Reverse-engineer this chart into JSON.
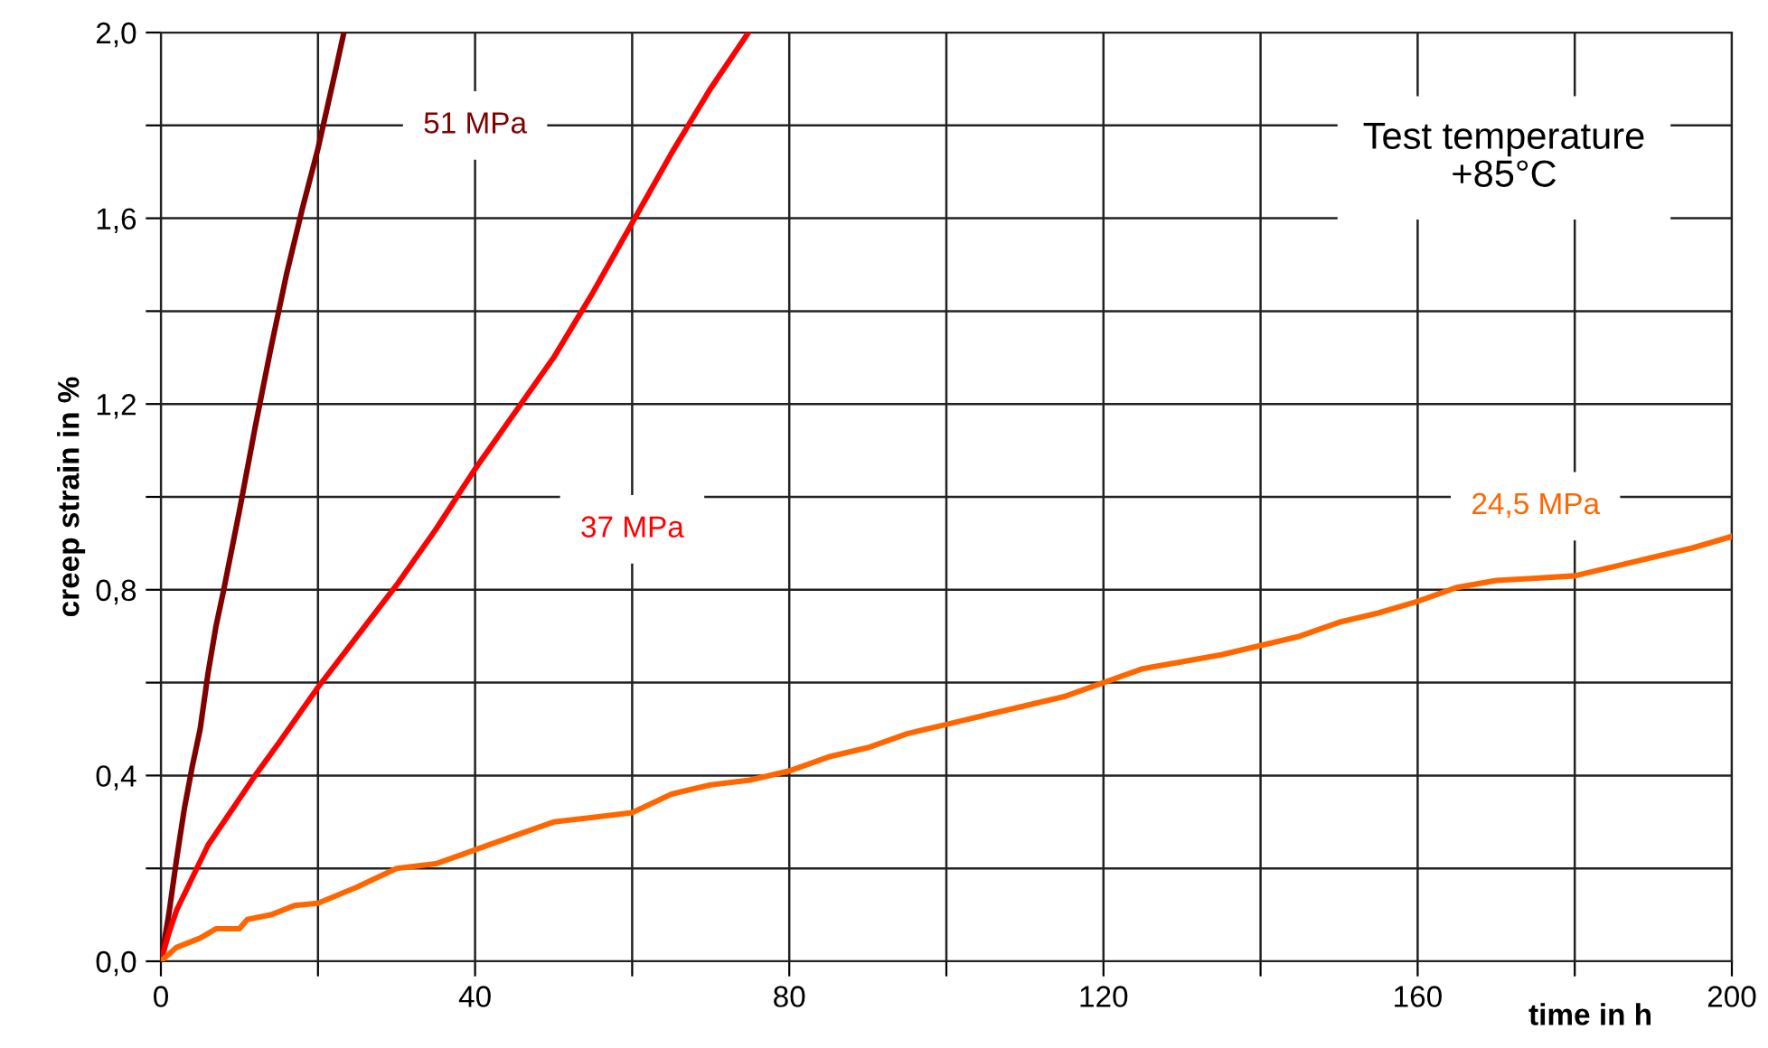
{
  "chart_data": {
    "type": "line",
    "xlabel": "time in h",
    "ylabel": "creep strain in %",
    "annotations": [
      "Test temperature\n+85°C"
    ],
    "xlim": [
      0,
      200
    ],
    "ylim": [
      0,
      2.0
    ],
    "xticks": [
      0,
      {
        "value": 20,
        "label": null
      },
      40,
      {
        "value": 60,
        "label": null
      },
      80,
      {
        "value": 100,
        "label": null
      },
      120,
      {
        "value": 140,
        "label": null
      },
      160,
      {
        "value": 180,
        "label": null
      },
      200
    ],
    "yticks": [
      {
        "value": 0,
        "label": "0,0"
      },
      {
        "value": 0.2,
        "label": null
      },
      {
        "value": 0.4,
        "label": "0,4"
      },
      {
        "value": 0.6,
        "label": null
      },
      {
        "value": 0.8,
        "label": "0,8"
      },
      {
        "value": 1.0,
        "label": null
      },
      {
        "value": 1.2,
        "label": "1,2"
      },
      {
        "value": 1.4,
        "label": null
      },
      {
        "value": 1.6,
        "label": "1,6"
      },
      {
        "value": 1.8,
        "label": null
      },
      {
        "value": 2.0,
        "label": "2,0"
      }
    ],
    "grid": true,
    "legend": false,
    "marker": "none",
    "line_style": "solid",
    "series": [
      {
        "name": "51 MPa",
        "color": "#800000",
        "x": [
          0,
          1,
          2,
          3,
          4,
          5,
          6,
          7,
          8,
          10,
          12,
          14,
          16,
          18,
          20,
          22,
          23.3
        ],
        "values": [
          0,
          0.1,
          0.22,
          0.33,
          0.42,
          0.5,
          0.62,
          0.72,
          0.8,
          0.97,
          1.15,
          1.32,
          1.48,
          1.62,
          1.75,
          1.9,
          2.0
        ]
      },
      {
        "name": "37 MPa",
        "color": "#ff0000",
        "x": [
          0,
          1,
          2,
          4,
          6,
          8,
          10,
          12,
          15,
          20,
          25,
          30,
          35,
          40,
          45,
          50,
          55,
          60,
          65,
          70,
          74.8
        ],
        "values": [
          0,
          0.06,
          0.11,
          0.18,
          0.25,
          0.3,
          0.35,
          0.4,
          0.47,
          0.59,
          0.7,
          0.81,
          0.93,
          1.06,
          1.18,
          1.3,
          1.44,
          1.59,
          1.74,
          1.88,
          2.0
        ]
      },
      {
        "name": "24,5 MPa",
        "color": "#ff6600",
        "x": [
          0,
          2,
          5,
          7,
          10,
          11,
          14,
          17,
          20,
          25,
          30,
          35,
          40,
          45,
          50,
          55,
          60,
          65,
          70,
          75,
          80,
          85,
          90,
          95,
          100,
          105,
          110,
          115,
          120,
          125,
          130,
          135,
          140,
          145,
          150,
          155,
          160,
          165,
          170,
          175,
          180,
          185,
          190,
          195,
          200
        ],
        "values": [
          0,
          0.03,
          0.05,
          0.07,
          0.07,
          0.09,
          0.1,
          0.12,
          0.125,
          0.16,
          0.2,
          0.21,
          0.24,
          0.27,
          0.3,
          0.31,
          0.32,
          0.36,
          0.38,
          0.39,
          0.41,
          0.44,
          0.46,
          0.49,
          0.51,
          0.53,
          0.55,
          0.57,
          0.6,
          0.63,
          0.645,
          0.66,
          0.68,
          0.7,
          0.73,
          0.75,
          0.775,
          0.805,
          0.82,
          0.825,
          0.83,
          0.85,
          0.87,
          0.89,
          0.915
        ]
      }
    ]
  }
}
